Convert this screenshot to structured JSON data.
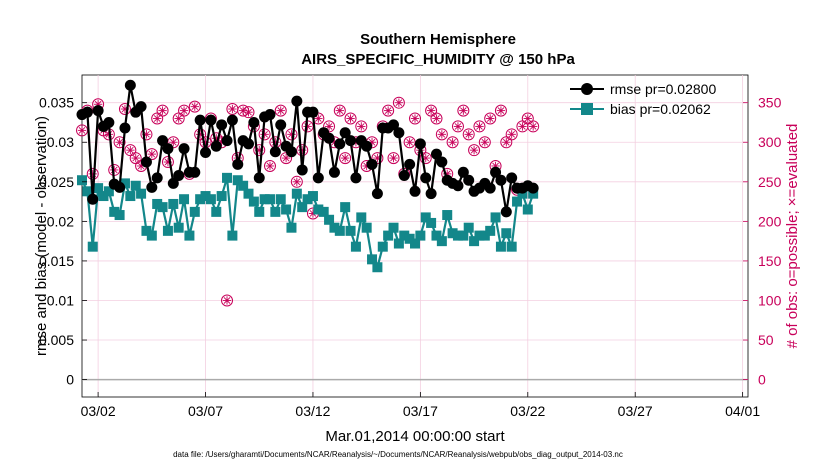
{
  "chart_data": {
    "type": "line",
    "title": "Southern Hemisphere",
    "subtitle": "AIRS_SPECIFIC_HUMIDITY @ 150 hPa",
    "xlabel": "Mar.01,2014 00:00:00 start",
    "ylabel_left": "rmse and bias (model - observation)",
    "ylabel_right": "# of obs: o=possible; ×=evaluated",
    "footnote": "data file: /Users/gharamti/Documents/NCAR/Reanalysis/~/Documents/NCAR/Reanalysis/webpub/obs_diag_output_2014-03.nc",
    "x_ticks": [
      "03/02",
      "03/07",
      "03/12",
      "03/17",
      "03/22",
      "03/27",
      "04/01"
    ],
    "x_tick_days": [
      2,
      7,
      12,
      17,
      22,
      27,
      32
    ],
    "xlim_days": [
      1.25,
      32.25
    ],
    "ylim_left": [
      -0.0022,
      0.0385
    ],
    "ylim_right": [
      -22,
      385
    ],
    "y_ticks_left": [
      "0",
      "0.005",
      "0.01",
      "0.015",
      "0.02",
      "0.025",
      "0.03",
      "0.035"
    ],
    "y_tick_left_values": [
      0,
      0.005,
      0.01,
      0.015,
      0.02,
      0.025,
      0.03,
      0.035
    ],
    "y_ticks_right": [
      "0",
      "50",
      "100",
      "150",
      "200",
      "250",
      "300",
      "350"
    ],
    "y_tick_right_values": [
      0,
      50,
      100,
      150,
      200,
      250,
      300,
      350
    ],
    "legend": {
      "rmse_label": "rmse pr=0.02800",
      "bias_label": "bias pr=0.02062",
      "placement": "top-right"
    },
    "colors": {
      "rmse": "#000000",
      "bias": "#13878a",
      "obs": "#c8005a",
      "zero_line": "#aaaaaa"
    },
    "series": [
      {
        "name": "rmse",
        "x": [
          1.25,
          1.5,
          1.75,
          2.0,
          2.25,
          2.5,
          2.75,
          3.0,
          3.25,
          3.5,
          3.75,
          4.0,
          4.25,
          4.5,
          4.75,
          5.0,
          5.25,
          5.5,
          5.75,
          6.0,
          6.25,
          6.5,
          6.75,
          7.0,
          7.25,
          7.5,
          7.75,
          8.0,
          8.25,
          8.5,
          8.75,
          9.0,
          9.25,
          9.5,
          9.75,
          10.0,
          10.25,
          10.5,
          10.75,
          11.0,
          11.25,
          11.5,
          11.75,
          12.0,
          12.25,
          12.5,
          12.75,
          13.0,
          13.25,
          13.5,
          13.75,
          14.0,
          14.25,
          14.5,
          14.75,
          15.0,
          15.25,
          15.5,
          15.75,
          16.0,
          16.25,
          16.5,
          16.75,
          17.0,
          17.25,
          17.5,
          17.75,
          18.0,
          18.25,
          18.5,
          18.75,
          19.0,
          19.25,
          19.5,
          19.75,
          20.0,
          20.25,
          20.5,
          20.75,
          21.0,
          21.25,
          21.5,
          21.75,
          22.0,
          22.25
        ],
        "values": [
          0.0335,
          0.0338,
          0.0228,
          0.034,
          0.032,
          0.0325,
          0.0247,
          0.0243,
          0.0318,
          0.0372,
          0.0338,
          0.0345,
          0.0275,
          0.0243,
          0.0255,
          0.0302,
          0.0292,
          0.0248,
          0.0258,
          0.0292,
          0.0262,
          0.0262,
          0.0328,
          0.0287,
          0.0328,
          0.0295,
          0.0322,
          0.0302,
          0.0328,
          0.0272,
          0.0302,
          0.0298,
          0.0325,
          0.0255,
          0.0332,
          0.0335,
          0.0288,
          0.0322,
          0.0295,
          0.0288,
          0.0352,
          0.0265,
          0.0338,
          0.0338,
          0.0255,
          0.0312,
          0.0305,
          0.0262,
          0.0298,
          0.0312,
          0.0302,
          0.0255,
          0.0302,
          0.0295,
          0.0272,
          0.0235,
          0.0318,
          0.0318,
          0.0322,
          0.0312,
          0.0258,
          0.0272,
          0.0238,
          0.0298,
          0.0255,
          0.0235,
          0.0285,
          0.0275,
          0.0252,
          0.0248,
          0.0245,
          0.0262,
          0.0252,
          0.0238,
          0.0242,
          0.0248,
          0.0242,
          0.0262,
          0.0252,
          0.0212,
          0.0255,
          0.0242,
          0.0242,
          0.0245,
          0.0242
        ]
      },
      {
        "name": "bias",
        "x": [
          1.25,
          1.5,
          1.75,
          2.0,
          2.25,
          2.5,
          2.75,
          3.0,
          3.25,
          3.5,
          3.75,
          4.0,
          4.25,
          4.5,
          4.75,
          5.0,
          5.25,
          5.5,
          5.75,
          6.0,
          6.25,
          6.5,
          6.75,
          7.0,
          7.25,
          7.5,
          7.75,
          8.0,
          8.25,
          8.5,
          8.75,
          9.0,
          9.25,
          9.5,
          9.75,
          10.0,
          10.25,
          10.5,
          10.75,
          11.0,
          11.25,
          11.5,
          11.75,
          12.0,
          12.25,
          12.5,
          12.75,
          13.0,
          13.25,
          13.5,
          13.75,
          14.0,
          14.25,
          14.5,
          14.75,
          15.0,
          15.25,
          15.5,
          15.75,
          16.0,
          16.25,
          16.5,
          16.75,
          17.0,
          17.25,
          17.5,
          17.75,
          18.0,
          18.25,
          18.5,
          18.75,
          19.0,
          19.25,
          19.5,
          19.75,
          20.0,
          20.25,
          20.5,
          20.75,
          21.0,
          21.25,
          21.5,
          21.75,
          22.0,
          22.25
        ],
        "values": [
          0.0252,
          0.0238,
          0.0168,
          0.0242,
          0.0232,
          0.0238,
          0.0212,
          0.0208,
          0.0248,
          0.0232,
          0.0245,
          0.0235,
          0.0188,
          0.0182,
          0.0222,
          0.0218,
          0.0188,
          0.0222,
          0.0192,
          0.0228,
          0.0182,
          0.0212,
          0.0228,
          0.0232,
          0.0228,
          0.0212,
          0.0232,
          0.0255,
          0.0182,
          0.0252,
          0.0245,
          0.0235,
          0.0225,
          0.0212,
          0.0228,
          0.0228,
          0.0212,
          0.0228,
          0.0215,
          0.0192,
          0.0235,
          0.0218,
          0.0228,
          0.0232,
          0.0215,
          0.0212,
          0.0202,
          0.0192,
          0.0188,
          0.0218,
          0.0188,
          0.0168,
          0.0205,
          0.0192,
          0.0152,
          0.0142,
          0.0168,
          0.0182,
          0.0192,
          0.0172,
          0.0182,
          0.0178,
          0.0172,
          0.0182,
          0.0205,
          0.0198,
          0.0182,
          0.0175,
          0.0208,
          0.0185,
          0.0182,
          0.0182,
          0.0192,
          0.0175,
          0.0182,
          0.0182,
          0.0188,
          0.0205,
          0.0168,
          0.0185,
          0.0168,
          0.0225,
          0.0235,
          0.0215,
          0.0235
        ]
      },
      {
        "name": "obs_count",
        "x": [
          1.25,
          1.5,
          1.75,
          2.0,
          2.25,
          2.5,
          2.75,
          3.0,
          3.25,
          3.5,
          3.75,
          4.0,
          4.25,
          4.5,
          4.75,
          5.0,
          5.25,
          5.5,
          5.75,
          6.0,
          6.25,
          6.5,
          6.75,
          7.0,
          7.25,
          7.5,
          7.75,
          8.0,
          8.25,
          8.5,
          8.75,
          9.0,
          9.25,
          9.5,
          9.75,
          10.0,
          10.25,
          10.5,
          10.75,
          11.0,
          11.25,
          11.5,
          11.75,
          12.0,
          12.25,
          12.5,
          12.75,
          13.0,
          13.25,
          13.5,
          13.75,
          14.0,
          14.25,
          14.5,
          14.75,
          15.0,
          15.25,
          15.5,
          15.75,
          16.0,
          16.25,
          16.5,
          16.75,
          17.0,
          17.25,
          17.5,
          17.75,
          18.0,
          18.25,
          18.5,
          18.75,
          19.0,
          19.25,
          19.5,
          19.75,
          20.0,
          20.25,
          20.5,
          20.75,
          21.0,
          21.25,
          21.5,
          21.75,
          22.0,
          22.25
        ],
        "values": [
          315,
          340,
          260,
          348,
          315,
          310,
          265,
          300,
          342,
          290,
          280,
          270,
          310,
          285,
          330,
          340,
          275,
          300,
          330,
          340,
          260,
          345,
          310,
          300,
          330,
          305,
          300,
          100,
          342,
          280,
          340,
          338,
          320,
          290,
          310,
          270,
          300,
          340,
          280,
          310,
          250,
          290,
          320,
          210,
          330,
          310,
          320,
          300,
          340,
          280,
          330,
          300,
          320,
          270,
          300,
          280,
          320,
          340,
          280,
          350,
          260,
          300,
          330,
          290,
          280,
          340,
          330,
          310,
          260,
          300,
          320,
          340,
          310,
          290,
          320,
          300,
          330,
          270,
          340,
          300,
          310,
          240,
          320,
          330,
          320
        ]
      }
    ]
  }
}
